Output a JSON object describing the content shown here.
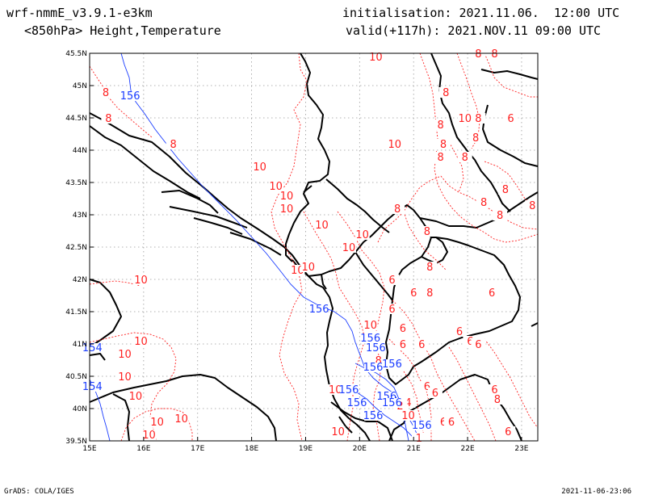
{
  "header": {
    "model": "wrf-nmmE_v3.9.1-e3km",
    "field": "<850hPa> Height,Temperature",
    "init": "initialisation: 2021.11.06.  12:00 UTC",
    "valid": "valid(+117h): 2021.NOV.11 09:00 UTC"
  },
  "footer": {
    "credit": "GrADS: COLA/IGES",
    "timestamp": "2021-11-06-23:06"
  },
  "colors": {
    "coast": "#000000",
    "temperature": "#ff2020",
    "height": "#1a3cff",
    "grid": "#999999"
  },
  "map": {
    "lon_range": [
      15,
      23.3
    ],
    "lat_range": [
      39.5,
      45.5
    ],
    "lon_ticks": [
      {
        "v": 15,
        "label": "15E"
      },
      {
        "v": 16,
        "label": "16E"
      },
      {
        "v": 17,
        "label": "17E"
      },
      {
        "v": 18,
        "label": "18E"
      },
      {
        "v": 19,
        "label": "19E"
      },
      {
        "v": 20,
        "label": "20E"
      },
      {
        "v": 21,
        "label": "21E"
      },
      {
        "v": 22,
        "label": "22E"
      },
      {
        "v": 23,
        "label": "23E"
      }
    ],
    "lat_ticks": [
      {
        "v": 45.5,
        "label": "45.5N"
      },
      {
        "v": 45,
        "label": "45N"
      },
      {
        "v": 44.5,
        "label": "44.5N"
      },
      {
        "v": 44,
        "label": "44N"
      },
      {
        "v": 43.5,
        "label": "43.5N"
      },
      {
        "v": 43,
        "label": "43N"
      },
      {
        "v": 42.5,
        "label": "42.5N"
      },
      {
        "v": 42,
        "label": "42N"
      },
      {
        "v": 41.5,
        "label": "41.5N"
      },
      {
        "v": 41,
        "label": "41N"
      },
      {
        "v": 40.5,
        "label": "40.5N"
      },
      {
        "v": 40,
        "label": "40N"
      },
      {
        "v": 39.5,
        "label": "39.5N"
      }
    ],
    "temp_labels": [
      {
        "lon": 20.3,
        "lat": 45.4,
        "text": "10"
      },
      {
        "lon": 22.2,
        "lat": 45.45,
        "text": "8"
      },
      {
        "lon": 22.5,
        "lat": 45.45,
        "text": "8"
      },
      {
        "lon": 15.3,
        "lat": 44.85,
        "text": "8"
      },
      {
        "lon": 21.6,
        "lat": 44.85,
        "text": "8"
      },
      {
        "lon": 15.35,
        "lat": 44.45,
        "text": "8"
      },
      {
        "lon": 21.95,
        "lat": 44.45,
        "text": "10"
      },
      {
        "lon": 22.2,
        "lat": 44.45,
        "text": "8"
      },
      {
        "lon": 22.8,
        "lat": 44.45,
        "text": "6"
      },
      {
        "lon": 21.5,
        "lat": 44.35,
        "text": "8"
      },
      {
        "lon": 22.15,
        "lat": 44.15,
        "text": "8"
      },
      {
        "lon": 16.55,
        "lat": 44.05,
        "text": "8"
      },
      {
        "lon": 20.65,
        "lat": 44.05,
        "text": "10"
      },
      {
        "lon": 21.55,
        "lat": 44.05,
        "text": "8"
      },
      {
        "lon": 21.5,
        "lat": 43.85,
        "text": "8"
      },
      {
        "lon": 21.95,
        "lat": 43.85,
        "text": "8"
      },
      {
        "lon": 18.15,
        "lat": 43.7,
        "text": "10"
      },
      {
        "lon": 18.45,
        "lat": 43.4,
        "text": "10"
      },
      {
        "lon": 18.65,
        "lat": 43.25,
        "text": "10"
      },
      {
        "lon": 22.7,
        "lat": 43.35,
        "text": "8"
      },
      {
        "lon": 22.3,
        "lat": 43.15,
        "text": "8"
      },
      {
        "lon": 23.2,
        "lat": 43.1,
        "text": "8"
      },
      {
        "lon": 18.65,
        "lat": 43.05,
        "text": "10"
      },
      {
        "lon": 20.7,
        "lat": 43.05,
        "text": "8"
      },
      {
        "lon": 22.6,
        "lat": 42.95,
        "text": "8"
      },
      {
        "lon": 19.3,
        "lat": 42.8,
        "text": "10"
      },
      {
        "lon": 20.05,
        "lat": 42.65,
        "text": "10"
      },
      {
        "lon": 21.25,
        "lat": 42.7,
        "text": "8"
      },
      {
        "lon": 19.8,
        "lat": 42.45,
        "text": "10"
      },
      {
        "lon": 18.85,
        "lat": 42.1,
        "text": "10"
      },
      {
        "lon": 19.05,
        "lat": 42.15,
        "text": "10"
      },
      {
        "lon": 21.3,
        "lat": 42.15,
        "text": "8"
      },
      {
        "lon": 20.6,
        "lat": 41.95,
        "text": "6"
      },
      {
        "lon": 15.95,
        "lat": 41.95,
        "text": "10"
      },
      {
        "lon": 21.0,
        "lat": 41.75,
        "text": "6"
      },
      {
        "lon": 21.3,
        "lat": 41.75,
        "text": "8"
      },
      {
        "lon": 22.45,
        "lat": 41.75,
        "text": "6"
      },
      {
        "lon": 20.6,
        "lat": 41.5,
        "text": "6"
      },
      {
        "lon": 20.8,
        "lat": 41.2,
        "text": "6"
      },
      {
        "lon": 20.2,
        "lat": 41.25,
        "text": "10"
      },
      {
        "lon": 21.85,
        "lat": 41.15,
        "text": "6"
      },
      {
        "lon": 22.05,
        "lat": 41.0,
        "text": "6"
      },
      {
        "lon": 22.2,
        "lat": 40.95,
        "text": "6"
      },
      {
        "lon": 15.95,
        "lat": 41.0,
        "text": "10"
      },
      {
        "lon": 15.65,
        "lat": 40.8,
        "text": "10"
      },
      {
        "lon": 20.8,
        "lat": 40.95,
        "text": "6"
      },
      {
        "lon": 21.15,
        "lat": 40.95,
        "text": "6"
      },
      {
        "lon": 20.35,
        "lat": 40.7,
        "text": "8"
      },
      {
        "lon": 20.3,
        "lat": 40.9,
        "text": "8"
      },
      {
        "lon": 15.65,
        "lat": 40.45,
        "text": "10"
      },
      {
        "lon": 19.55,
        "lat": 40.25,
        "text": "10"
      },
      {
        "lon": 21.25,
        "lat": 40.3,
        "text": "6"
      },
      {
        "lon": 21.4,
        "lat": 40.2,
        "text": "6"
      },
      {
        "lon": 22.5,
        "lat": 40.25,
        "text": "6"
      },
      {
        "lon": 22.55,
        "lat": 40.1,
        "text": "8"
      },
      {
        "lon": 15.85,
        "lat": 40.15,
        "text": "10"
      },
      {
        "lon": 20.9,
        "lat": 40.05,
        "text": "4"
      },
      {
        "lon": 20.75,
        "lat": 40.0,
        "text": "2"
      },
      {
        "lon": 20.9,
        "lat": 39.85,
        "text": "10"
      },
      {
        "lon": 16.25,
        "lat": 39.75,
        "text": "10"
      },
      {
        "lon": 16.7,
        "lat": 39.8,
        "text": "10"
      },
      {
        "lon": 21.25,
        "lat": 39.7,
        "text": "4"
      },
      {
        "lon": 21.55,
        "lat": 39.75,
        "text": "6"
      },
      {
        "lon": 21.7,
        "lat": 39.75,
        "text": "6"
      },
      {
        "lon": 16.1,
        "lat": 39.55,
        "text": "10"
      },
      {
        "lon": 19.6,
        "lat": 39.6,
        "text": "10"
      },
      {
        "lon": 22.75,
        "lat": 39.6,
        "text": "6"
      },
      {
        "lon": 21.1,
        "lat": 39.5,
        "text": "1"
      }
    ],
    "height_labels": [
      {
        "lon": 15.75,
        "lat": 44.8,
        "text": "156"
      },
      {
        "lon": 19.25,
        "lat": 41.5,
        "text": "156"
      },
      {
        "lon": 20.2,
        "lat": 41.05,
        "text": "156"
      },
      {
        "lon": 20.3,
        "lat": 40.9,
        "text": "156"
      },
      {
        "lon": 20.25,
        "lat": 40.6,
        "text": "156"
      },
      {
        "lon": 20.6,
        "lat": 40.65,
        "text": "156"
      },
      {
        "lon": 19.8,
        "lat": 40.25,
        "text": "156"
      },
      {
        "lon": 19.95,
        "lat": 40.05,
        "text": "156"
      },
      {
        "lon": 20.5,
        "lat": 40.15,
        "text": "156"
      },
      {
        "lon": 20.6,
        "lat": 40.05,
        "text": "156"
      },
      {
        "lon": 20.25,
        "lat": 39.85,
        "text": "156"
      },
      {
        "lon": 21.15,
        "lat": 39.7,
        "text": "156"
      },
      {
        "lon": 15.05,
        "lat": 40.9,
        "text": "154"
      },
      {
        "lon": 15.05,
        "lat": 40.3,
        "text": "154"
      }
    ]
  }
}
